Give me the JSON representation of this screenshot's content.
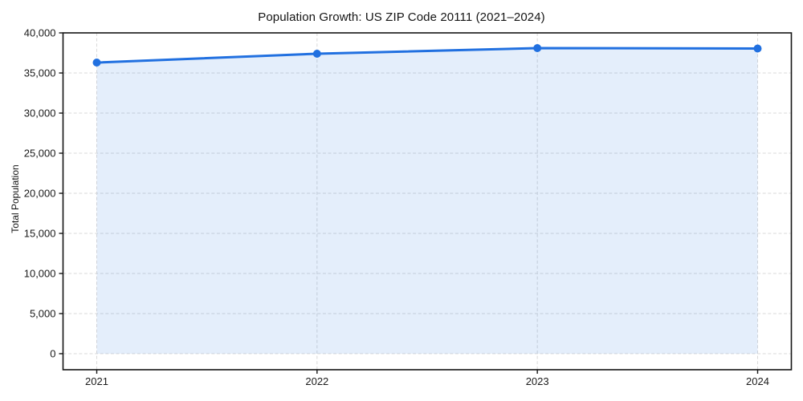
{
  "chart_data": {
    "type": "area",
    "title": "Population Growth: US ZIP Code 20111 (2021–2024)",
    "categories": [
      "2021",
      "2022",
      "2023",
      "2024"
    ],
    "series": [
      {
        "name": "Total Population",
        "values": [
          36300,
          37400,
          38100,
          38050
        ]
      }
    ],
    "xlabel": "",
    "ylabel": "Total Population",
    "ylim": [
      0,
      40000
    ],
    "ytick_step": 5000,
    "yticks": [
      0,
      5000,
      10000,
      15000,
      20000,
      25000,
      30000,
      35000,
      40000
    ],
    "grid": true,
    "grid_style": "dashed",
    "legend": false,
    "marker": "circle",
    "colors": {
      "line": "#2170e0",
      "fill": "#2170e0",
      "fill_opacity": 0.12,
      "grid": "#d9d9d9",
      "spine": "#141414",
      "text": "#1a1a1a",
      "background": "#ffffff"
    }
  }
}
